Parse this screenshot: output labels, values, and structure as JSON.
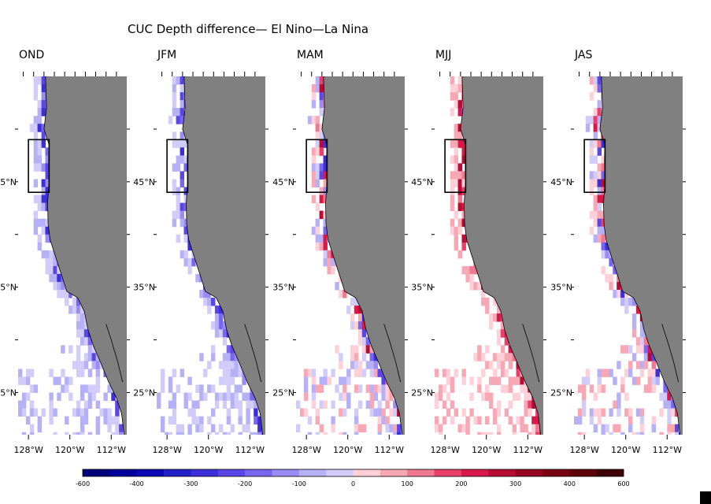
{
  "chart_data": {
    "type": "heatmap",
    "title": "CUC Depth difference— El Nino—La Nina",
    "xlabel": "",
    "ylabel": "",
    "lon_ticks": [
      "128°W",
      "120°W",
      "112°W"
    ],
    "lat_ticks": [
      "45°N",
      "35°N",
      "25°N"
    ],
    "lon_range": [
      -130,
      -109
    ],
    "lat_range": [
      21,
      55
    ],
    "season_panels": [
      {
        "label": "OND",
        "dominant_sign": "negative"
      },
      {
        "label": "JFM",
        "dominant_sign": "negative"
      },
      {
        "label": "MAM",
        "dominant_sign": "mixed"
      },
      {
        "label": "MJJ",
        "dominant_sign": "positive"
      },
      {
        "label": "JAS",
        "dominant_sign": "mixed"
      }
    ],
    "colorbar": {
      "ticks": [
        "-600",
        "-400",
        "-300",
        "-200",
        "-100",
        "0",
        "100",
        "200",
        "300",
        "400",
        "600"
      ],
      "range": [
        -600,
        600
      ],
      "colors": [
        "#00007a",
        "#00009a",
        "#0a0ab4",
        "#2020c8",
        "#3c2ed8",
        "#5a46e6",
        "#7866ee",
        "#9a8cf4",
        "#b6b0f6",
        "#d2ccfa",
        "#ffd0d8",
        "#f8a8b4",
        "#f07890",
        "#e8406a",
        "#d81848",
        "#b80c34",
        "#960620",
        "#7a0412",
        "#5c0208",
        "#3c0004"
      ]
    },
    "land_color": "#808080",
    "box_region": {
      "lon": [
        -128,
        -124
      ],
      "lat": [
        44,
        49
      ]
    }
  }
}
